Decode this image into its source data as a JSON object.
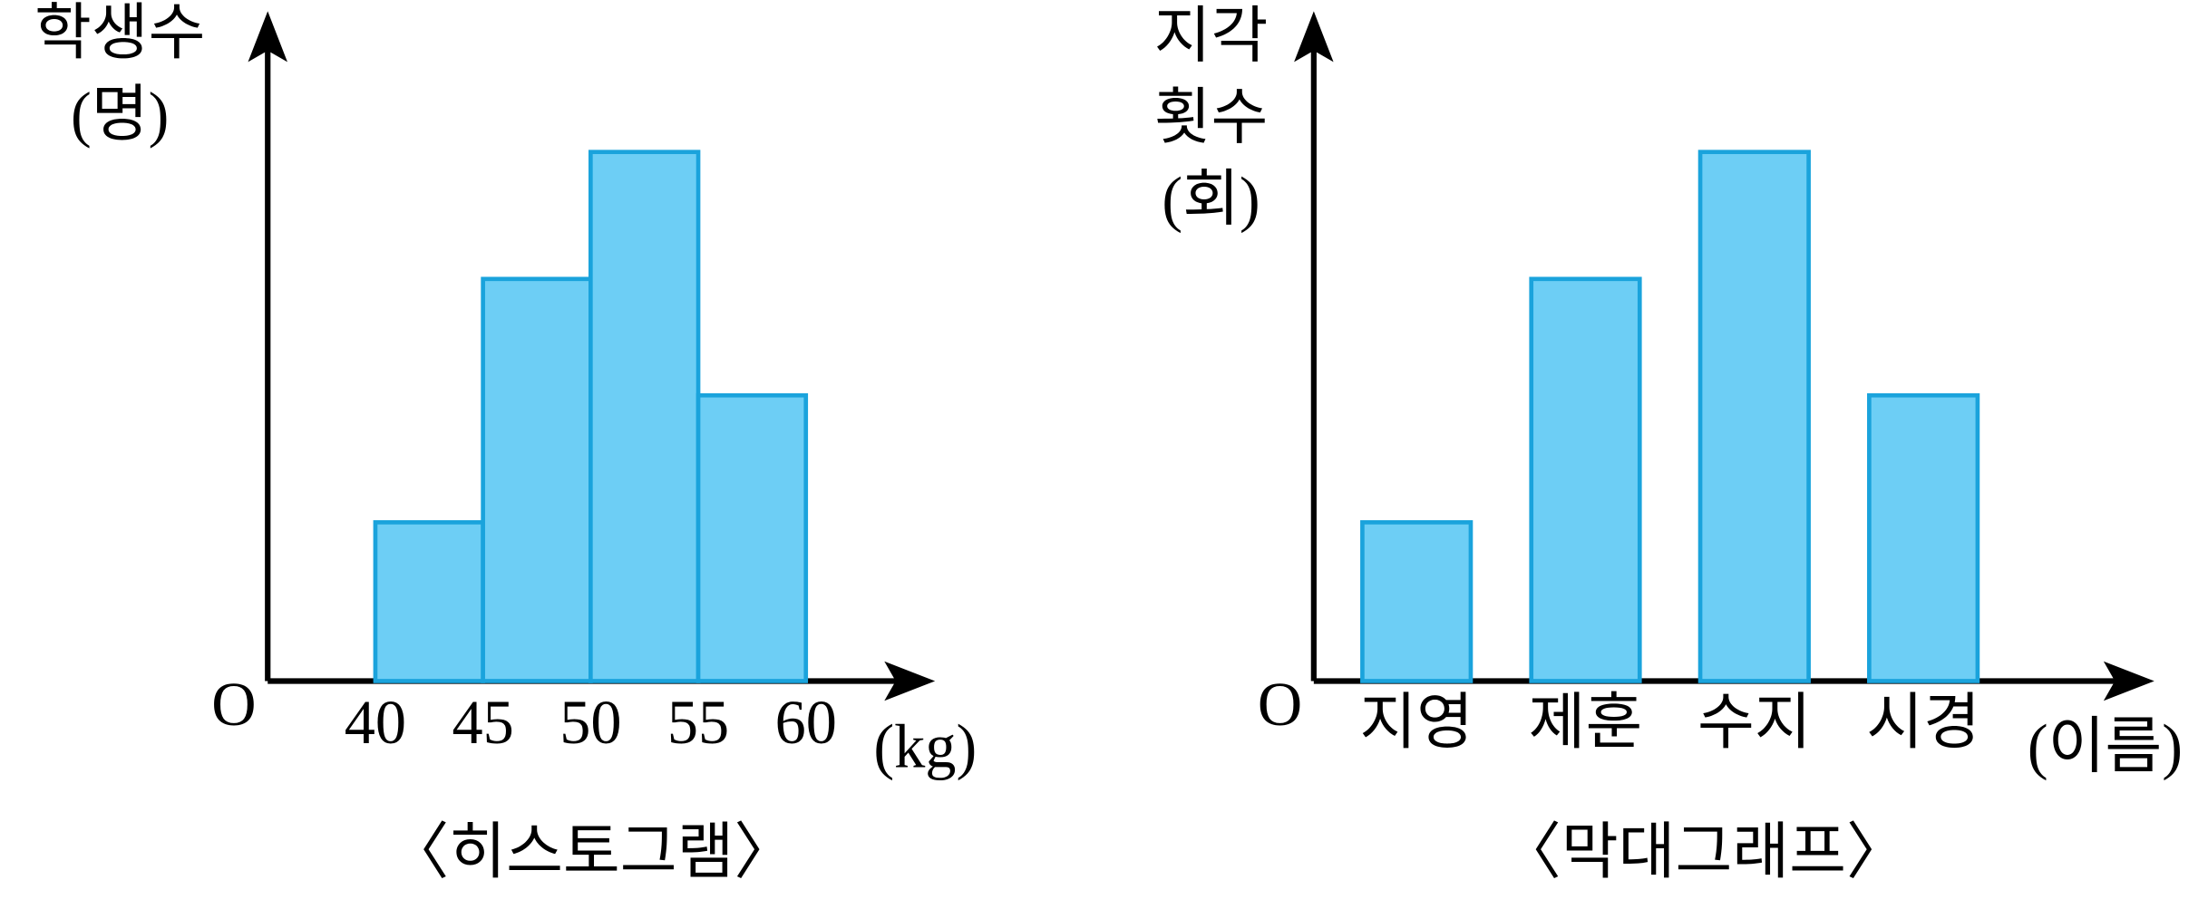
{
  "chart_data": [
    {
      "type": "histogram",
      "title": "〈히스토그램〉",
      "ylabel": [
        "학생수",
        "(명)"
      ],
      "xlabel": "(kg)",
      "origin_label": "O",
      "bins": [
        40,
        45,
        50,
        55,
        60
      ],
      "values": [
        3,
        7.6,
        10,
        5.4
      ],
      "color": "#6dcef5",
      "edgecolor": "#1aa3dc",
      "xlim": [
        35,
        66
      ],
      "xticks": [
        40,
        45,
        50,
        55,
        60
      ],
      "ylim": [
        0,
        12.5
      ]
    },
    {
      "type": "bar",
      "title": "〈막대그래프〉",
      "ylabel": [
        "지각",
        "횟수",
        "(회)"
      ],
      "xlabel": "(이름)",
      "origin_label": "O",
      "categories": [
        "지영",
        "제훈",
        "수지",
        "시경"
      ],
      "values": [
        3,
        7.6,
        10,
        5.4
      ],
      "color": "#6dcef5",
      "edgecolor": "#1aa3dc",
      "ylim": [
        0,
        12.5
      ]
    }
  ]
}
